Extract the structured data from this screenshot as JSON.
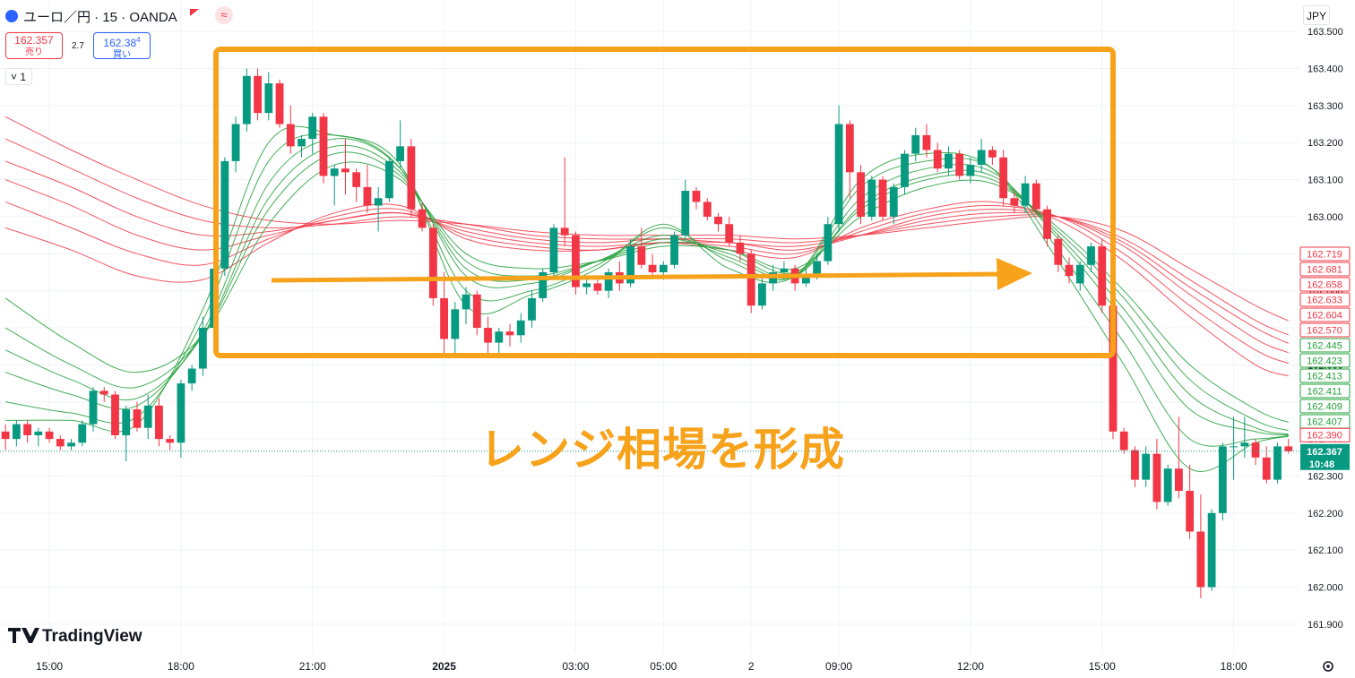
{
  "header": {
    "symbol": "ユーロ／円 · 15 · OANDA",
    "sell_price": "162.357",
    "sell_label": "売り",
    "spread": "2.7",
    "buy_price": "162.38",
    "buy_price_last_digit": "4",
    "buy_label": "買い",
    "indicator_count": "1",
    "currency": "JPY"
  },
  "chart_data": {
    "type": "candlestick",
    "annotation": "レンジ相場を形成",
    "watermark": "TradingView",
    "up_color": "#089981",
    "down_color": "#f23645",
    "grid": true,
    "xlim": [
      -0.5,
      118
    ],
    "ylim": [
      161.82,
      163.585
    ],
    "xticks": [
      {
        "value": 4,
        "label": "15:00"
      },
      {
        "value": 16,
        "label": "18:00"
      },
      {
        "value": 28,
        "label": "21:00"
      },
      {
        "value": 40,
        "label": "2025"
      },
      {
        "value": 52,
        "label": "03:00"
      },
      {
        "value": 60,
        "label": "05:00"
      },
      {
        "value": 68,
        "label": "2"
      },
      {
        "value": 76,
        "label": "09:00"
      },
      {
        "value": 88,
        "label": "12:00"
      },
      {
        "value": 100,
        "label": "15:00"
      },
      {
        "value": 112,
        "label": "18:00"
      }
    ],
    "yticks": [
      {
        "value": 163.5,
        "label": "163.500"
      },
      {
        "value": 163.4,
        "label": "163.400"
      },
      {
        "value": 163.3,
        "label": "163.300"
      },
      {
        "value": 163.2,
        "label": "163.200"
      },
      {
        "value": 163.1,
        "label": "163.100"
      },
      {
        "value": 163,
        "label": "163.000"
      },
      {
        "value": 162.9,
        "label": "162.900"
      },
      {
        "value": 162.8,
        "label": "162.800"
      },
      {
        "value": 162.7,
        "label": "162.700"
      },
      {
        "value": 162.6,
        "label": "162.600"
      },
      {
        "value": 162.5,
        "label": "162.500"
      },
      {
        "value": 162.4,
        "label": "162.400"
      },
      {
        "value": 162.3,
        "label": "162.300"
      },
      {
        "value": 162.2,
        "label": "162.200"
      },
      {
        "value": 162.1,
        "label": "162.100"
      },
      {
        "value": 162,
        "label": "162.000"
      },
      {
        "value": 161.9,
        "label": "161.900"
      }
    ],
    "open": [
      162.42,
      162.4,
      162.44,
      162.41,
      162.42,
      162.4,
      162.38,
      162.39,
      162.44,
      162.53,
      162.52,
      162.41,
      162.48,
      162.43,
      162.49,
      162.4,
      162.39,
      162.55,
      162.59,
      162.7,
      162.86,
      163.15,
      163.25,
      163.38,
      163.28,
      163.36,
      163.25,
      163.19,
      163.21,
      163.27,
      163.11,
      163.13,
      163.12,
      163.08,
      163.03,
      163.05,
      163.15,
      163.19,
      163.02,
      162.97,
      162.78,
      162.67,
      162.75,
      162.79,
      162.7,
      162.66,
      162.69,
      162.68,
      162.72,
      162.78,
      162.85,
      162.97,
      162.95,
      162.81,
      162.82,
      162.8,
      162.85,
      162.82,
      162.92,
      162.87,
      162.85,
      162.87,
      162.95,
      163.07,
      163.04,
      163.0,
      162.98,
      162.93,
      162.9,
      162.76,
      162.82,
      162.85,
      162.86,
      162.82,
      162.84,
      162.88,
      162.98,
      163.25,
      163.12,
      163.0,
      163.1,
      163.0,
      163.08,
      163.17,
      163.22,
      163.18,
      163.13,
      163.17,
      163.11,
      163.14,
      163.18,
      163.16,
      163.05,
      163.03,
      163.09,
      163.02,
      162.94,
      162.87,
      162.82,
      162.87,
      162.92,
      162.76,
      162.42,
      162.37,
      162.29,
      162.36,
      162.23,
      162.32,
      162.26,
      162.15,
      162.0,
      162.2,
      162.38,
      162.38,
      162.39,
      162.35,
      162.29,
      162.38
    ],
    "high": [
      162.44,
      162.45,
      162.45,
      162.43,
      162.43,
      162.41,
      162.4,
      162.45,
      162.54,
      162.54,
      162.53,
      162.49,
      162.5,
      162.52,
      162.51,
      162.41,
      162.56,
      162.6,
      162.73,
      162.88,
      163.16,
      163.27,
      163.4,
      163.4,
      163.39,
      163.37,
      163.3,
      163.22,
      163.28,
      163.28,
      163.14,
      163.21,
      163.13,
      163.14,
      163.08,
      163.16,
      163.26,
      163.21,
      163.04,
      162.98,
      162.85,
      162.77,
      162.81,
      162.8,
      162.73,
      162.7,
      162.71,
      162.74,
      162.8,
      162.86,
      162.98,
      163.16,
      162.96,
      162.84,
      162.83,
      162.86,
      162.88,
      162.94,
      162.97,
      162.9,
      162.88,
      162.96,
      163.1,
      163.08,
      163.05,
      163.01,
      163.0,
      162.95,
      162.91,
      162.84,
      162.87,
      162.88,
      162.87,
      162.86,
      162.9,
      163.0,
      163.3,
      163.26,
      163.14,
      163.11,
      163.11,
      163.09,
      163.18,
      163.24,
      163.25,
      163.2,
      163.19,
      163.18,
      163.16,
      163.21,
      163.19,
      163.18,
      163.07,
      163.11,
      163.1,
      163.03,
      162.95,
      162.89,
      162.88,
      162.93,
      162.94,
      162.77,
      162.43,
      162.38,
      162.38,
      162.4,
      162.33,
      162.46,
      162.33,
      162.25,
      162.21,
      162.39,
      162.46,
      162.46,
      162.4,
      162.38,
      162.39,
      162.4
    ],
    "low": [
      162.37,
      162.38,
      162.39,
      162.38,
      162.39,
      162.37,
      162.37,
      162.38,
      162.42,
      162.5,
      162.4,
      162.34,
      162.42,
      162.4,
      162.38,
      162.37,
      162.35,
      162.53,
      162.57,
      162.68,
      162.84,
      163.12,
      163.23,
      163.26,
      163.26,
      163.24,
      163.17,
      163.16,
      163.17,
      163.09,
      163.03,
      163.06,
      163.04,
      163.01,
      162.96,
      163.04,
      163.13,
      163.0,
      162.96,
      162.76,
      162.63,
      162.63,
      162.71,
      162.68,
      162.63,
      162.63,
      162.65,
      162.66,
      162.7,
      162.77,
      162.83,
      162.92,
      162.79,
      162.79,
      162.79,
      162.78,
      162.8,
      162.81,
      162.86,
      162.84,
      162.83,
      162.86,
      162.94,
      163.02,
      162.99,
      162.96,
      162.92,
      162.88,
      162.74,
      162.75,
      162.8,
      162.83,
      162.8,
      162.81,
      162.83,
      162.87,
      162.96,
      163.05,
      162.98,
      162.99,
      162.99,
      162.98,
      163.06,
      163.15,
      163.16,
      163.12,
      163.11,
      163.1,
      163.09,
      163.12,
      163.14,
      163.03,
      163.01,
      163.01,
      163.01,
      162.92,
      162.85,
      162.82,
      162.8,
      162.85,
      162.74,
      162.4,
      162.36,
      162.27,
      162.27,
      162.21,
      162.22,
      162.24,
      162.13,
      161.97,
      161.99,
      162.18,
      162.29,
      162.35,
      162.33,
      162.28,
      162.28,
      162.36
    ],
    "close": [
      162.4,
      162.44,
      162.41,
      162.42,
      162.4,
      162.38,
      162.39,
      162.44,
      162.53,
      162.52,
      162.41,
      162.48,
      162.43,
      162.49,
      162.4,
      162.39,
      162.55,
      162.59,
      162.7,
      162.86,
      163.15,
      163.25,
      163.38,
      163.28,
      163.36,
      163.25,
      163.19,
      163.21,
      163.27,
      163.11,
      163.13,
      163.12,
      163.08,
      163.03,
      163.05,
      163.15,
      163.19,
      163.02,
      162.97,
      162.78,
      162.67,
      162.75,
      162.79,
      162.7,
      162.66,
      162.69,
      162.68,
      162.72,
      162.78,
      162.85,
      162.97,
      162.95,
      162.81,
      162.82,
      162.8,
      162.85,
      162.82,
      162.92,
      162.87,
      162.85,
      162.87,
      162.95,
      163.07,
      163.04,
      163.0,
      162.98,
      162.93,
      162.9,
      162.76,
      162.82,
      162.85,
      162.86,
      162.82,
      162.84,
      162.88,
      162.98,
      163.25,
      163.12,
      163.0,
      163.1,
      163.0,
      163.08,
      163.17,
      163.22,
      163.18,
      163.13,
      163.17,
      163.11,
      163.14,
      163.18,
      163.16,
      163.05,
      163.03,
      163.09,
      163.02,
      162.94,
      162.87,
      162.84,
      162.87,
      162.92,
      162.76,
      162.42,
      162.37,
      162.29,
      162.36,
      162.23,
      162.32,
      162.26,
      162.15,
      162.0,
      162.2,
      162.38,
      162.38,
      162.39,
      162.35,
      162.29,
      162.38,
      162.367
    ],
    "series_x": [
      0,
      6,
      12,
      18,
      24,
      30,
      36,
      42,
      48,
      54,
      60,
      66,
      72,
      78,
      84,
      90,
      96,
      102,
      108,
      114,
      117
    ],
    "series": [
      {
        "color": "#f23645",
        "end_label": "162.719",
        "values": [
          163.27,
          163.18,
          163.1,
          163.03,
          162.99,
          162.98,
          162.99,
          162.98,
          162.96,
          162.95,
          162.95,
          162.95,
          162.94,
          162.95,
          162.97,
          162.99,
          163.0,
          162.96,
          162.86,
          162.76,
          162.719
        ]
      },
      {
        "color": "#f23645",
        "end_label": "162.681",
        "values": [
          163.21,
          163.13,
          163.05,
          162.99,
          162.97,
          162.98,
          163.0,
          162.98,
          162.95,
          162.94,
          162.94,
          162.94,
          162.93,
          162.95,
          162.98,
          163.0,
          163.0,
          162.94,
          162.83,
          162.72,
          162.681
        ]
      },
      {
        "color": "#f23645",
        "end_label": "162.658",
        "values": [
          163.15,
          163.08,
          163.0,
          162.95,
          162.96,
          162.99,
          163.01,
          162.97,
          162.94,
          162.93,
          162.94,
          162.93,
          162.92,
          162.95,
          162.99,
          163.01,
          163.0,
          162.93,
          162.81,
          162.7,
          162.658
        ]
      },
      {
        "color": "#f23645",
        "end_label": "162.633",
        "values": [
          163.1,
          163.03,
          162.95,
          162.91,
          162.95,
          162.99,
          163.01,
          162.96,
          162.93,
          162.92,
          162.93,
          162.93,
          162.91,
          162.95,
          163.0,
          163.02,
          163.0,
          162.92,
          162.79,
          162.67,
          162.633
        ]
      },
      {
        "color": "#f23645",
        "end_label": "162.604",
        "values": [
          163.04,
          162.97,
          162.9,
          162.87,
          162.94,
          163.0,
          163.02,
          162.95,
          162.92,
          162.91,
          162.93,
          162.92,
          162.9,
          162.96,
          163.01,
          163.03,
          163.0,
          162.9,
          162.76,
          162.64,
          162.604
        ]
      },
      {
        "color": "#f23645",
        "end_label": "162.570",
        "values": [
          162.97,
          162.91,
          162.84,
          162.83,
          162.93,
          163.01,
          163.03,
          162.94,
          162.91,
          162.91,
          162.93,
          162.91,
          162.89,
          162.97,
          163.02,
          163.04,
          162.99,
          162.88,
          162.73,
          162.6,
          162.57
        ]
      },
      {
        "color": "#22a03a",
        "end_label": "162.445",
        "values": [
          162.78,
          162.66,
          162.58,
          162.68,
          162.98,
          163.14,
          163.1,
          162.9,
          162.86,
          162.88,
          162.92,
          162.91,
          162.86,
          163.0,
          163.08,
          163.09,
          162.97,
          162.8,
          162.6,
          162.48,
          162.445
        ]
      },
      {
        "color": "#22a03a",
        "end_label": "162.423",
        "values": [
          162.7,
          162.6,
          162.54,
          162.68,
          163.02,
          163.17,
          163.11,
          162.88,
          162.84,
          162.88,
          162.93,
          162.91,
          162.85,
          163.02,
          163.1,
          163.1,
          162.96,
          162.78,
          162.56,
          162.45,
          162.423
        ]
      },
      {
        "color": "#22a03a",
        "end_label": "162.413",
        "values": [
          162.64,
          162.56,
          162.51,
          162.68,
          163.05,
          163.19,
          163.12,
          162.86,
          162.83,
          162.88,
          162.94,
          162.9,
          162.84,
          163.03,
          163.11,
          163.11,
          162.95,
          162.75,
          162.52,
          162.43,
          162.413
        ]
      },
      {
        "color": "#22a03a",
        "end_label": "162.411",
        "values": [
          162.58,
          162.52,
          162.49,
          162.69,
          163.09,
          163.21,
          163.13,
          162.84,
          162.82,
          162.88,
          162.95,
          162.89,
          162.84,
          163.05,
          163.13,
          163.12,
          162.94,
          162.72,
          162.48,
          162.42,
          162.411
        ]
      },
      {
        "color": "#22a03a",
        "end_label": "162.409",
        "values": [
          162.5,
          162.47,
          162.46,
          162.72,
          163.15,
          163.22,
          163.13,
          162.8,
          162.8,
          162.87,
          162.97,
          162.88,
          162.84,
          163.08,
          163.15,
          163.13,
          162.91,
          162.66,
          162.4,
          162.4,
          162.409
        ]
      },
      {
        "color": "#22a03a",
        "end_label": "162.407",
        "values": [
          162.45,
          162.45,
          162.44,
          162.75,
          163.2,
          163.22,
          163.14,
          162.76,
          162.79,
          162.86,
          162.98,
          162.86,
          162.84,
          163.1,
          163.17,
          163.13,
          162.88,
          162.6,
          162.32,
          162.39,
          162.407
        ]
      }
    ],
    "reference_price": {
      "value": 162.39,
      "label": "162.390",
      "color": "#f23645"
    },
    "last_price": {
      "value": 162.367,
      "label": "162.367",
      "countdown": "10:48",
      "color": "#089981"
    }
  }
}
